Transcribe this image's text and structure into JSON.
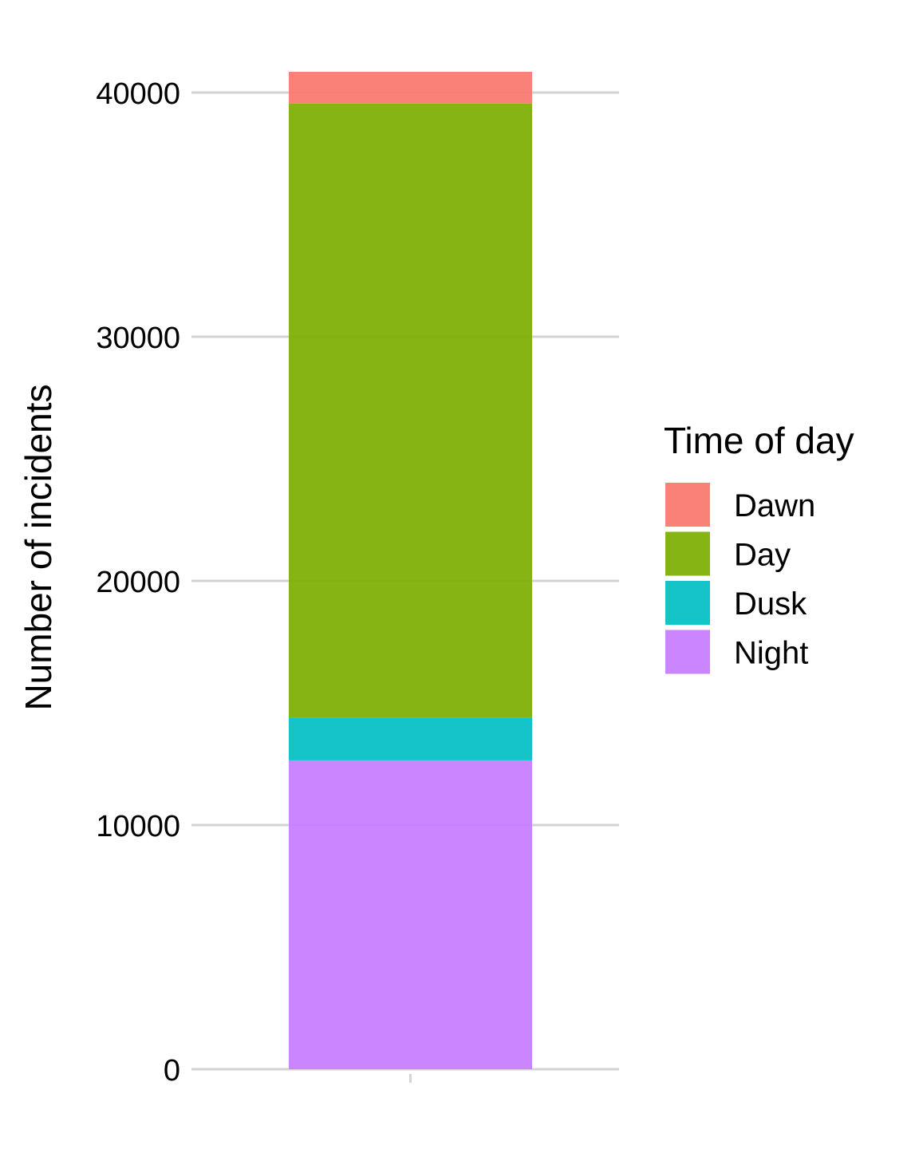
{
  "chart_data": {
    "type": "bar",
    "stacked": true,
    "categories": [
      ""
    ],
    "series": [
      {
        "name": "Dawn",
        "values": [
          1300
        ],
        "color": "#F8766D"
      },
      {
        "name": "Day",
        "values": [
          25150
        ],
        "color": "#7CAE00"
      },
      {
        "name": "Dusk",
        "values": [
          1750
        ],
        "color": "#00BFC4"
      },
      {
        "name": "Night",
        "values": [
          12650
        ],
        "color": "#C77CFF"
      }
    ],
    "title": "",
    "xlabel": "",
    "ylabel": "Number of incidents",
    "ylim": [
      0,
      40850
    ],
    "yticks": [
      0,
      10000,
      20000,
      30000,
      40000
    ],
    "ytick_labels": [
      "0",
      "10000",
      "20000",
      "30000",
      "40000"
    ],
    "grid": true,
    "legend": {
      "title": "Time of day",
      "position": "right",
      "entries": [
        "Dawn",
        "Day",
        "Dusk",
        "Night"
      ]
    }
  }
}
